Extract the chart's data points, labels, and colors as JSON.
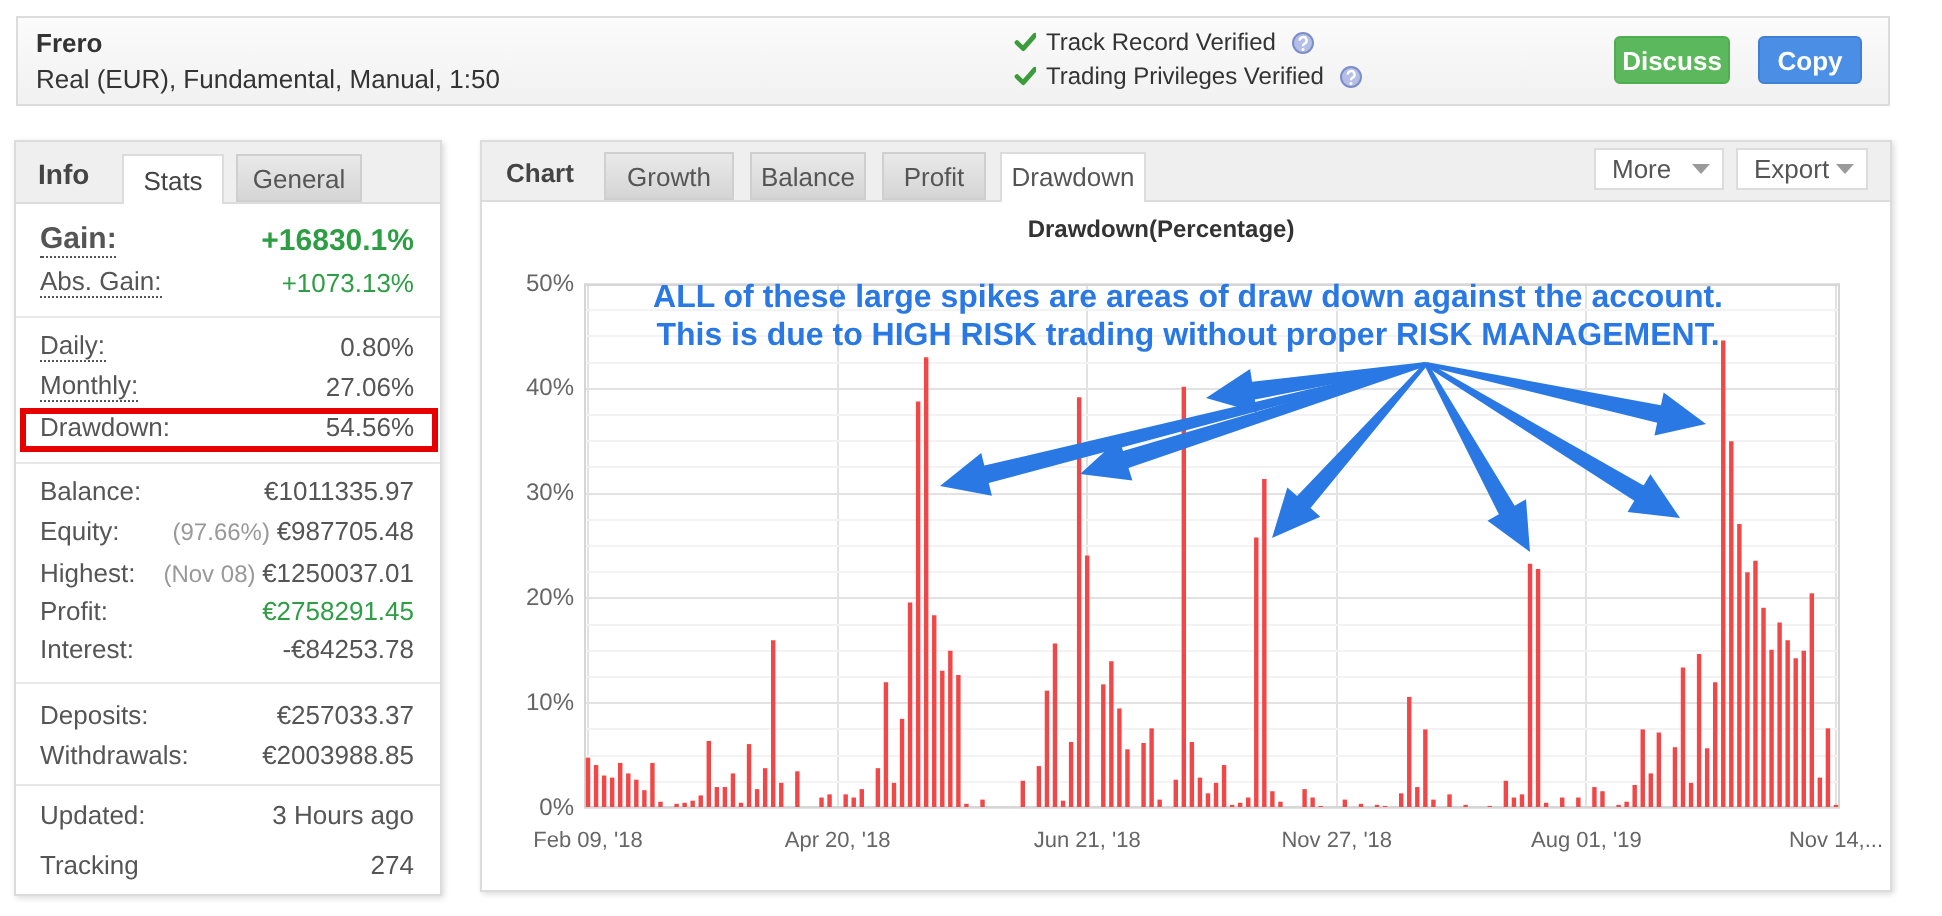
{
  "chart_data": [
    {
      "type": "other",
      "title": "Frero",
      "subtitle": "Real (EUR), Fundamental, Manual, 1:50",
      "annotations": [
        "Track Record Verified",
        "Trading Privileges Verified",
        "Discuss",
        "Copy"
      ]
    },
    {
      "type": "other",
      "title": "Info",
      "annotations": [
        "Stats",
        "General",
        "Gain:",
        "+16830.1%",
        "Abs. Gain:",
        "+1073.13%",
        "Daily:",
        "0.80%",
        "Monthly:",
        "27.06%",
        "Drawdown:",
        "54.56%",
        "Balance:",
        "€1011335.97",
        "Equity:",
        "(97.66%)",
        "€987705.48",
        "Highest:",
        "(Nov 08)",
        "€1250037.01",
        "Profit:",
        "€2758291.45",
        "Interest:",
        "-€84253.78",
        "Deposits:",
        "€257033.37",
        "Withdrawals:",
        "€2003988.85",
        "Updated:",
        "3 Hours ago",
        "Tracking",
        "274"
      ]
    },
    {
      "type": "other",
      "title": "Chart",
      "annotations": [
        "Growth",
        "Balance",
        "Profit",
        "Drawdown",
        "More",
        "Export"
      ]
    },
    {
      "type": "bar",
      "title": "Drawdown(Percentage)",
      "annotations": [
        "ALL of these large spikes are areas of draw down against the account.",
        "This is due to HIGH RISK trading without proper RISK MANAGEMENT."
      ],
      "categories": [
        "Feb 09, '18",
        null,
        null,
        null,
        null,
        null,
        null,
        null,
        null,
        null,
        null,
        null,
        null,
        null,
        null,
        null,
        null,
        null,
        null,
        null,
        null,
        null,
        null,
        null,
        null,
        null,
        null,
        null,
        null,
        null,
        null,
        "Apr 20, '18",
        null,
        null,
        null,
        null,
        null,
        null,
        null,
        null,
        null,
        null,
        null,
        null,
        null,
        null,
        null,
        null,
        null,
        null,
        null,
        null,
        null,
        null,
        null,
        null,
        null,
        null,
        null,
        null,
        null,
        null,
        "Jun 21, '18",
        null,
        null,
        null,
        null,
        null,
        null,
        null,
        null,
        null,
        null,
        null,
        null,
        null,
        null,
        null,
        null,
        null,
        null,
        null,
        null,
        null,
        null,
        null,
        null,
        null,
        null,
        null,
        null,
        null,
        null,
        "Nov 27, '18",
        null,
        null,
        null,
        null,
        null,
        null,
        null,
        null,
        null,
        null,
        null,
        null,
        null,
        null,
        null,
        null,
        null,
        null,
        null,
        null,
        null,
        null,
        null,
        null,
        null,
        null,
        null,
        null,
        null,
        null,
        "Aug 01, '19",
        null,
        null,
        null,
        null,
        null,
        null,
        null,
        null,
        null,
        null,
        null,
        null,
        null,
        null,
        null,
        null,
        null,
        null,
        null,
        null,
        null,
        null,
        null,
        null,
        null,
        null,
        null,
        null,
        null,
        null,
        "Nov 14,..."
      ],
      "values": [
        4.8,
        4.1,
        3.1,
        2.9,
        4.3,
        3.3,
        2.7,
        1.7,
        4.3,
        0.6,
        0,
        0.4,
        0.5,
        0.7,
        1.2,
        6.4,
        2.0,
        2.0,
        3.3,
        0.5,
        6.1,
        1.8,
        3.8,
        16.0,
        2.4,
        0,
        3.5,
        0,
        0,
        1.0,
        1.3,
        0,
        1.3,
        1.0,
        1.8,
        0,
        3.8,
        12.0,
        2.4,
        8.5,
        19.6,
        38.8,
        43.0,
        18.4,
        13.1,
        15.0,
        12.7,
        0.4,
        0,
        0.8,
        0,
        0,
        0,
        0,
        2.6,
        0,
        4.0,
        11.2,
        15.7,
        0.7,
        6.3,
        39.2,
        24.1,
        0,
        11.8,
        14.0,
        9.5,
        5.6,
        0,
        6.2,
        7.6,
        0.8,
        0,
        2.7,
        40.2,
        6.3,
        2.9,
        1.4,
        2.4,
        4.1,
        0.3,
        0.5,
        1.0,
        25.8,
        31.4,
        1.6,
        0.6,
        0,
        0,
        1.8,
        1.0,
        0.2,
        0,
        0,
        0.8,
        0,
        0.4,
        0,
        0.3,
        0.2,
        0,
        1.4,
        10.6,
        2.0,
        7.5,
        0.8,
        0,
        1.3,
        0,
        0.3,
        0,
        0,
        0.2,
        0,
        2.6,
        1.0,
        1.3,
        23.3,
        22.8,
        0.5,
        0,
        1.0,
        0,
        1.0,
        0,
        2.0,
        1.6,
        0,
        0.3,
        0.6,
        2.2,
        7.5,
        3.3,
        7.2,
        0,
        5.8,
        13.4,
        2.4,
        14.7,
        5.7,
        12.0,
        44.6,
        35.0,
        27.1,
        22.5,
        23.6,
        19.1,
        15.1,
        17.7,
        16.0,
        14.3,
        15.0,
        20.5,
        2.9,
        7.6,
        0.3
      ],
      "color": "#f04848",
      "ylim": [
        0,
        50
      ],
      "yticks": [
        {
          "value": 0,
          "label": "0%"
        },
        {
          "value": 2.5,
          "label": null
        },
        {
          "value": 5,
          "label": null
        },
        {
          "value": 7.5,
          "label": null
        },
        {
          "value": 10,
          "label": "10%"
        },
        {
          "value": 12.5,
          "label": null
        },
        {
          "value": 15,
          "label": null
        },
        {
          "value": 17.5,
          "label": null
        },
        {
          "value": 20,
          "label": "20%"
        },
        {
          "value": 22.5,
          "label": null
        },
        {
          "value": 25,
          "label": null
        },
        {
          "value": 27.5,
          "label": null
        },
        {
          "value": 30,
          "label": "30%"
        },
        {
          "value": 32.5,
          "label": null
        },
        {
          "value": 35,
          "label": null
        },
        {
          "value": 37.5,
          "label": null
        },
        {
          "value": 40,
          "label": "40%"
        },
        {
          "value": 42.5,
          "label": null
        },
        {
          "value": 45,
          "label": null
        },
        {
          "value": 47.5,
          "label": null
        },
        {
          "value": 50,
          "label": "50%"
        }
      ],
      "grid": true
    }
  ]
}
